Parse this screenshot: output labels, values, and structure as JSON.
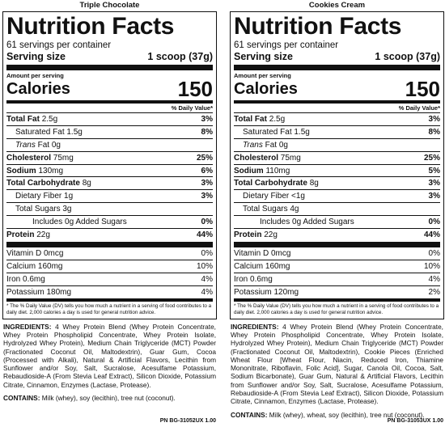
{
  "panels": [
    {
      "flavor": "Triple Chocolate",
      "title": "Nutrition Facts",
      "servings": "61 servings per container",
      "serving_size_label": "Serving size",
      "serving_size_value": "1 scoop (37g)",
      "amount_per_serving": "Amount per serving",
      "calories_label": "Calories",
      "calories_value": "150",
      "dv_header": "% Daily Value*",
      "total_fat": {
        "label": "Total Fat",
        "amount": "2.5g",
        "dv": "3%"
      },
      "saturated_fat": {
        "label": "Saturated Fat 1.5g",
        "dv": "8%"
      },
      "trans_fat": {
        "label": "Trans",
        "amount": "Fat 0g"
      },
      "cholesterol": {
        "label": "Cholesterol",
        "amount": "75mg",
        "dv": "25%"
      },
      "sodium": {
        "label": "Sodium",
        "amount": "130mg",
        "dv": "6%"
      },
      "carbs": {
        "label": "Total Carbohydrate",
        "amount": "8g",
        "dv": "3%"
      },
      "fiber": {
        "label": "Dietary Fiber 1g",
        "dv": "3%"
      },
      "sugars": {
        "label": "Total Sugars 3g"
      },
      "added_sugars": {
        "label": "Includes 0g Added Sugars",
        "dv": "0%"
      },
      "protein": {
        "label": "Protein",
        "amount": "22g",
        "dv": "44%"
      },
      "vitamins": [
        {
          "label": "Vitamin D 0mcg",
          "dv": "0%"
        },
        {
          "label": "Calcium 160mg",
          "dv": "10%"
        },
        {
          "label": "Iron 0.6mg",
          "dv": "4%"
        },
        {
          "label": "Potassium 180mg",
          "dv": "4%"
        }
      ],
      "footnote": "* The % Daily Value (DV) tells you how much a nutrient in a serving of food contributes to a daily diet. 2,000 calories a day is used for general nutrition advice.",
      "ingredients_label": "INGREDIENTS:",
      "ingredients_text": "4 Whey Protein Blend (Whey Protein Concentrate, Whey Protein Phospholipid Concentrate, Whey Protein Isolate, Hydrolyzed Whey Protein), Medium Chain Triglyceride (MCT) Powder (Fractionated Coconut Oil, Maltodextrin), Guar Gum, Cocoa (Processed with Alkali), Natural & Artificial Flavors, Lecithin from Sunflower and/or Soy, Salt, Sucralose, Acesulfame Potassium, Rebaudioside-A (From Stevia Leaf Extract), Silicon Dioxide, Potassium Citrate, Cinnamon, Enzymes (Lactase, Protease).",
      "contains_label": "CONTAINS:",
      "contains_text": "Milk (whey), soy (lecithin), tree nut (coconut).",
      "pn": "PN BG-31052UX 1.00"
    },
    {
      "flavor": "Cookies Cream",
      "title": "Nutrition Facts",
      "servings": "61 servings per container",
      "serving_size_label": "Serving size",
      "serving_size_value": "1 scoop (37g)",
      "amount_per_serving": "Amount per serving",
      "calories_label": "Calories",
      "calories_value": "150",
      "dv_header": "% Daily Value*",
      "total_fat": {
        "label": "Total Fat",
        "amount": "2.5g",
        "dv": "3%"
      },
      "saturated_fat": {
        "label": "Saturated Fat 1.5g",
        "dv": "8%"
      },
      "trans_fat": {
        "label": "Trans",
        "amount": "Fat 0g"
      },
      "cholesterol": {
        "label": "Cholesterol",
        "amount": "75mg",
        "dv": "25%"
      },
      "sodium": {
        "label": "Sodium",
        "amount": "110mg",
        "dv": "5%"
      },
      "carbs": {
        "label": "Total Carbohydrate",
        "amount": "8g",
        "dv": "3%"
      },
      "fiber": {
        "label": "Dietary Fiber <1g",
        "dv": "3%"
      },
      "sugars": {
        "label": "Total Sugars 4g"
      },
      "added_sugars": {
        "label": "Includes 0g Added Sugars",
        "dv": "0%"
      },
      "protein": {
        "label": "Protein",
        "amount": "22g",
        "dv": "44%"
      },
      "vitamins": [
        {
          "label": "Vitamin D 0mcg",
          "dv": "0%"
        },
        {
          "label": "Calcium 160mg",
          "dv": "10%"
        },
        {
          "label": "Iron 0.6mg",
          "dv": "4%"
        },
        {
          "label": "Potassium 120mg",
          "dv": "2%"
        }
      ],
      "footnote": "* The % Daily Value (DV) tells you how much a nutrient in a serving of food contributes to a daily diet. 2,000 calories a day is used for general nutrition advice.",
      "ingredients_label": "INGREDIENTS:",
      "ingredients_text": "4 Whey Protein Blend (Whey Protein Concentrate, Whey Protein Phospholipid Concentrate, Whey Protein Isolate, Hydrolyzed Whey Protein), Medium Chain Triglyceride (MCT) Powder (Fractionated Coconut Oil, Maltodextrin), Cookie Pieces (Enriched Wheat Flour [Wheat Flour, Niacin, Reduced Iron, Thiamine Mononitrate, Riboflavin, Folic Acid], Sugar, Canola Oil, Cocoa, Salt, Sodium Bicarbonate), Guar Gum, Natural & Artificial Flavors, Lecithin from Sunflower and/or Soy, Salt, Sucralose, Acesulfame Potassium, Rebaudioside-A (From Stevia Leaf Extract), Silicon Dioxide, Potassium Citrate, Cinnamon, Enzymes (Lactase, Protease).",
      "contains_label": "CONTAINS:",
      "contains_text": "Milk (whey), wheat, soy (lecithin), tree nut (coconut).",
      "pn": "PN BG-31053UX 1.00"
    }
  ]
}
